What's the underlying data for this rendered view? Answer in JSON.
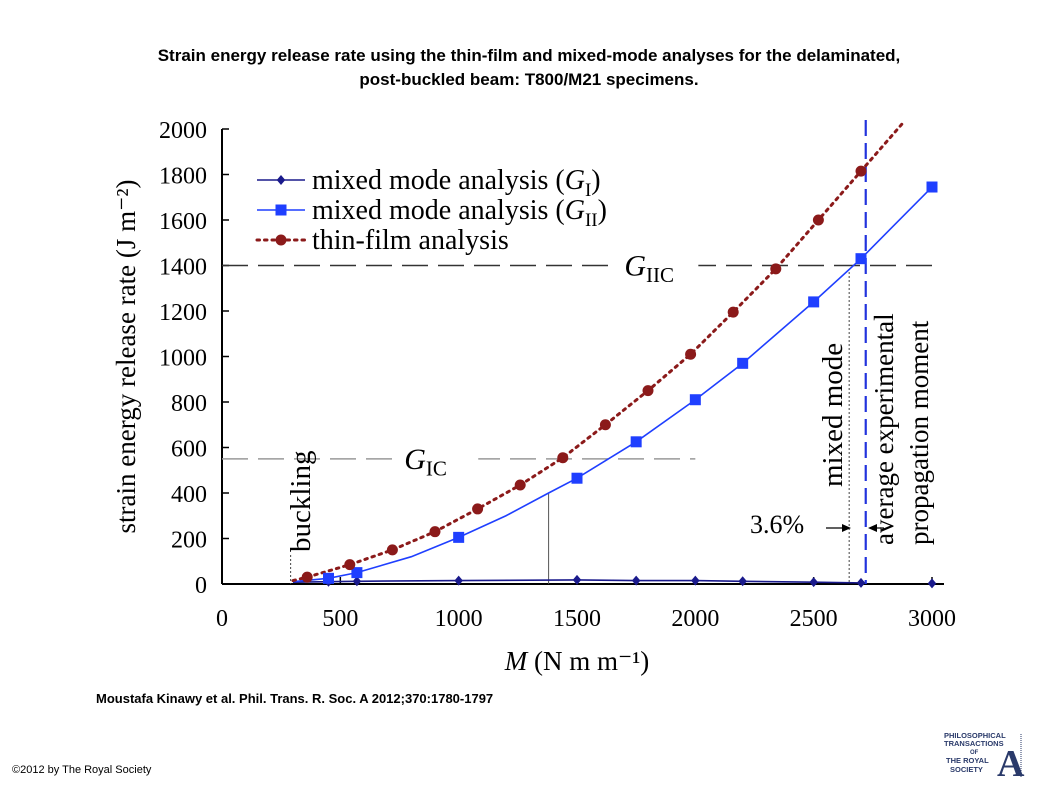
{
  "header": {
    "title_line1": "Strain energy release rate using the thin-film and mixed-mode analyses for the delaminated,",
    "title_line2": "post-buckled beam: T800/M21 specimens."
  },
  "footer": {
    "citation": "Moustafa Kinawy et al. Phil. Trans. R. Soc. A 2012;370:1780-1797",
    "copyright": "©2012 by The Royal Society",
    "logo_line1": "PHILOSOPHICAL",
    "logo_line2": "TRANSACTIONS",
    "logo_line3": "OF",
    "logo_line4": "THE ROYAL",
    "logo_line5": "SOCIETY",
    "logo_letter": "A"
  },
  "chart_data": {
    "type": "line",
    "ylabel": "strain energy release rate (J m⁻²)",
    "xlabel": "M (N m m⁻¹)",
    "xlim": [
      0,
      3000
    ],
    "ylim": [
      0,
      2000
    ],
    "xticks": [
      "0",
      "500",
      "1000",
      "1500",
      "2000",
      "2500",
      "3000"
    ],
    "yticks": [
      "0",
      "200",
      "400",
      "600",
      "800",
      "1000",
      "1200",
      "1400",
      "1600",
      "1800",
      "2000"
    ],
    "legend_position": "top-left",
    "series": [
      {
        "name": "mixed mode analysis (G_I)",
        "legend_text": "mixed mode analysis (",
        "legend_sym": "G",
        "legend_sub": "I",
        "color": "#1a1a8c",
        "marker": "diamond",
        "line": "solid",
        "x": [
          450,
          570,
          1000,
          1500,
          1750,
          2000,
          2200,
          2500,
          2700,
          3000
        ],
        "y": [
          10,
          12,
          15,
          18,
          15,
          15,
          12,
          8,
          5,
          3
        ],
        "curve_x": [
          300,
          450,
          570,
          1000,
          1500,
          1750,
          2000,
          2200,
          2500,
          2700
        ],
        "curve_y": [
          8,
          10,
          12,
          15,
          18,
          15,
          15,
          12,
          8,
          5
        ]
      },
      {
        "name": "mixed mode analysis (G_II)",
        "legend_text": "mixed mode analysis (",
        "legend_sym": "G",
        "legend_sub": "II",
        "color": "#1f3fff",
        "marker": "square",
        "line": "solid",
        "x": [
          450,
          570,
          1000,
          1500,
          1750,
          2000,
          2200,
          2500,
          2700,
          3000
        ],
        "y": [
          25,
          50,
          205,
          465,
          625,
          810,
          970,
          1240,
          1430,
          1745
        ],
        "curve_x": [
          300,
          450,
          570,
          800,
          1000,
          1200,
          1380,
          1500,
          1750,
          2000,
          2200,
          2500,
          2700,
          3000
        ],
        "curve_y": [
          10,
          25,
          50,
          120,
          205,
          300,
          400,
          465,
          625,
          810,
          970,
          1240,
          1430,
          1745
        ]
      },
      {
        "name": "thin-film analysis",
        "legend_text": "thin-film analysis",
        "color": "#8b1a1a",
        "marker": "circle",
        "line": "dotted",
        "x": [
          360,
          540,
          720,
          900,
          1080,
          1260,
          1440,
          1620,
          1800,
          1980,
          2160,
          2340,
          2520,
          2700
        ],
        "y": [
          30,
          85,
          150,
          230,
          330,
          435,
          555,
          700,
          850,
          1010,
          1195,
          1385,
          1600,
          1815
        ],
        "curve_x": [
          300,
          360,
          540,
          720,
          900,
          1080,
          1260,
          1440,
          1620,
          1800,
          1980,
          2160,
          2340,
          2520,
          2700,
          2880
        ],
        "curve_y": [
          15,
          30,
          85,
          150,
          230,
          330,
          435,
          555,
          700,
          850,
          1010,
          1195,
          1385,
          1600,
          1815,
          2030
        ]
      }
    ],
    "reference_lines": [
      {
        "orientation": "horizontal",
        "value": 1400,
        "from": 0,
        "to": 3000,
        "label_sym": "G",
        "label_sub": "IIC",
        "label_x": 1700
      },
      {
        "orientation": "horizontal",
        "value": 550,
        "from": 0,
        "to": 2000,
        "label_sym": "G",
        "label_sub": "IC",
        "label_x": 770
      },
      {
        "orientation": "vertical",
        "value": 2720,
        "style": "dashed-blue",
        "label": "average experimental propagation moment"
      },
      {
        "orientation": "vertical",
        "value": 2650,
        "style": "dotted",
        "label": "mixed mode"
      },
      {
        "orientation": "vertical",
        "value": 290,
        "style": "dotted",
        "label": "buckling"
      },
      {
        "orientation": "vertical",
        "value": 1380,
        "style": "thin-solid",
        "ymax": 400
      }
    ],
    "annotations": [
      {
        "text": "3.6%",
        "x": 2300,
        "y": 260
      }
    ]
  }
}
